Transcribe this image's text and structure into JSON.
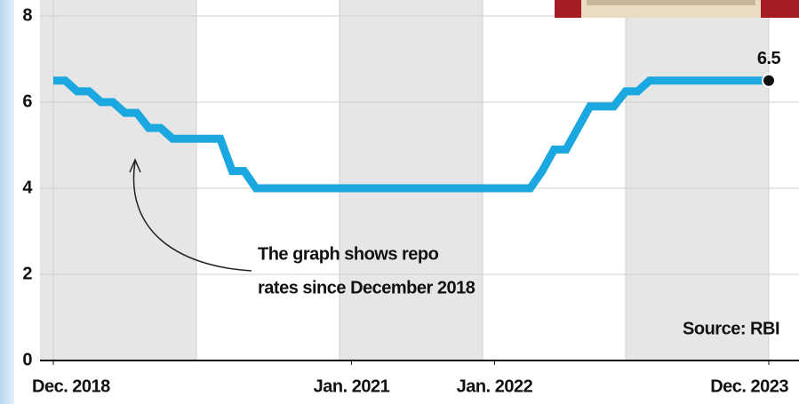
{
  "chart_data": {
    "type": "line",
    "x": [
      "2018-12",
      "2019-01",
      "2019-02",
      "2019-03",
      "2019-04",
      "2019-05",
      "2019-06",
      "2019-07",
      "2019-08",
      "2019-09",
      "2019-10",
      "2020-02",
      "2020-03",
      "2020-04",
      "2020-05",
      "2022-04",
      "2022-05",
      "2022-06",
      "2022-07",
      "2022-08",
      "2022-09",
      "2022-11",
      "2022-12",
      "2023-01",
      "2023-02",
      "2023-12"
    ],
    "series": [
      {
        "color": "#1ba7e0",
        "values": [
          6.5,
          6.5,
          6.25,
          6.25,
          6.0,
          6.0,
          5.75,
          5.75,
          5.4,
          5.4,
          5.15,
          5.15,
          4.4,
          4.4,
          4.0,
          4.0,
          4.4,
          4.9,
          4.9,
          5.4,
          5.9,
          5.9,
          6.25,
          6.25,
          6.5,
          6.5
        ],
        "value_labels": [
          null,
          null,
          null,
          null,
          null,
          null,
          null,
          null,
          null,
          null,
          null,
          null,
          null,
          null,
          null,
          null,
          null,
          null,
          null,
          null,
          null,
          null,
          null,
          null,
          null,
          "6.5"
        ]
      }
    ],
    "xlim": [
      "2018-12",
      "2023-12"
    ],
    "xticks": [
      {
        "value": "2018-12",
        "label": "Dec. 2018"
      },
      {
        "value": "2021-01",
        "label": "Jan. 2021"
      },
      {
        "value": "2022-01",
        "label": "Jan. 2022"
      },
      {
        "value": "2023-12",
        "label": "Dec. 2023"
      }
    ],
    "ylim": [
      0,
      8
    ],
    "yticks": [
      0,
      2,
      4,
      6,
      8
    ],
    "grid": true,
    "annotation": [
      "The graph shows repo",
      "rates since December 2018"
    ],
    "source": "Source: RBI"
  }
}
